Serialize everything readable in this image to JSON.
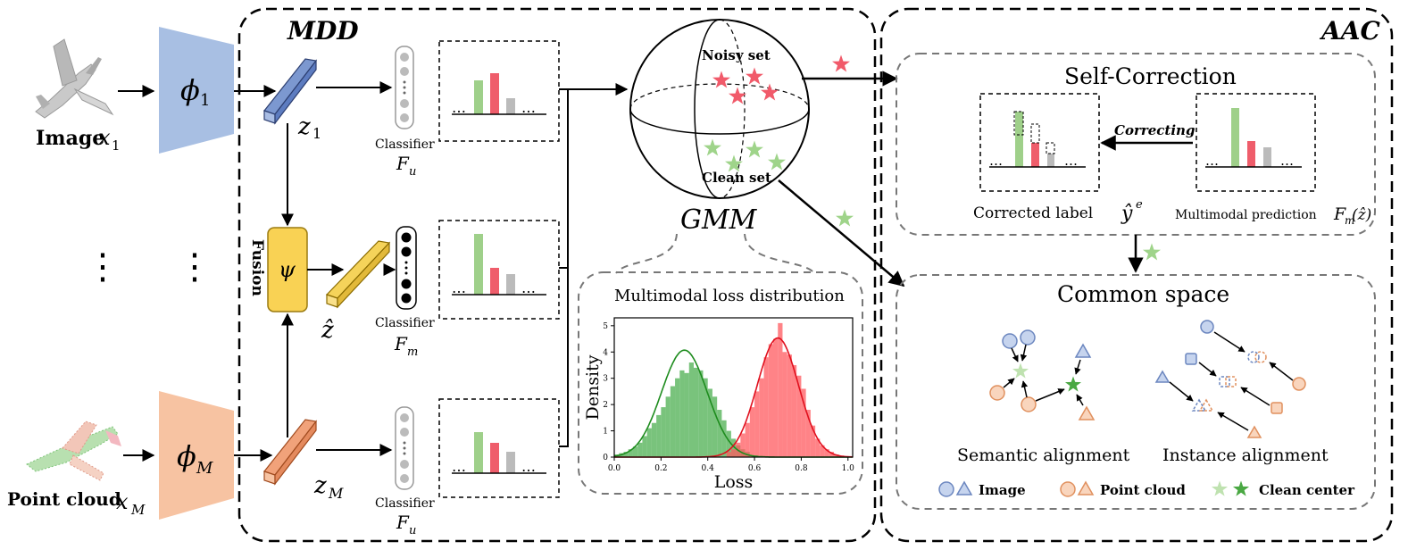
{
  "labels": {
    "image": "Image",
    "image_var": "x",
    "image_sub": "1",
    "point_cloud": "Point cloud",
    "pc_var": "x",
    "pc_sub": "M",
    "phi_1_main": "ϕ",
    "phi_1_sub": "1",
    "phi_M_main": "ϕ",
    "phi_M_sub": "M",
    "z1_main": "z",
    "z1_sub": "1",
    "zM_main": "z",
    "zM_sub": "M",
    "zhat": "ẑ",
    "psi": "ψ",
    "fusion": "Fusion",
    "classifier_1": "Classifier",
    "classifier_2": "Classifier",
    "classifier_3": "Classifier",
    "F_u_1_main": "F",
    "F_u_1_sub": "u",
    "F_m_main": "F",
    "F_m_sub": "m",
    "F_u_2_main": "F",
    "F_u_2_sub": "u",
    "dots": "⋮",
    "bar_ellipsis": "…"
  },
  "mdd": {
    "title": "MDD",
    "noisy_set": "Noisy set",
    "clean_set": "Clean set",
    "gmm": "GMM",
    "loss_title": "Multimodal loss distribution"
  },
  "aac": {
    "title": "AAC",
    "self_correction": "Self-Correction",
    "correcting": "Correcting",
    "corrected_label": "Corrected label",
    "corrected_symbol": "ŷ",
    "corrected_sup": "e",
    "multimodal_prediction": "Multimodal prediction",
    "pred_symbol_main": "F",
    "pred_symbol_sub": "m",
    "pred_arg": "(ẑ)",
    "common_space": "Common space",
    "semantic_alignment": "Semantic alignment",
    "instance_alignment": "Instance alignment",
    "legend_image": "Image",
    "legend_point_cloud": "Point cloud",
    "legend_clean_center": "Clean center"
  },
  "colors": {
    "image_blue": "#a8bfe3",
    "pc_orange": "#f7c3a2",
    "fusion_yellow": "#f9d254",
    "bar_green": "#9fd08a",
    "bar_red": "#ef5d6b",
    "bar_gray": "#bbbbbb",
    "star_red": "#f15a6a",
    "star_green": "#9fd48a",
    "clean_green": "#4aa843",
    "hist_green": "#4caf50",
    "hist_red": "#ff5a5f"
  },
  "chart_data": {
    "type": "histogram",
    "xlabel": "Loss",
    "ylabel": "Density",
    "xlim": [
      0.0,
      1.02
    ],
    "ylim": [
      0,
      5.3
    ],
    "xticks": [
      "0.0",
      "0.2",
      "0.4",
      "0.6",
      "0.8",
      "1.0"
    ],
    "yticks": [
      "0",
      "1",
      "2",
      "3",
      "4",
      "5"
    ],
    "bin_width": 0.02,
    "series": [
      {
        "bin_start": 0.0,
        "values": [
          0.1,
          0.15,
          0.2,
          0.3,
          0.4,
          0.55,
          0.8,
          1.1,
          1.3,
          1.6,
          1.9,
          2.3,
          2.7,
          3.0,
          3.3,
          3.2,
          3.6,
          3.4,
          3.3,
          3.0,
          2.6,
          2.3,
          1.8,
          1.4,
          1.0,
          0.7,
          0.45,
          0.3,
          0.2
        ],
        "curve_mean": 0.3,
        "curve_sd": 0.098
      },
      {
        "bin_start": 0.48,
        "values": [
          0.2,
          0.3,
          0.55,
          0.9,
          1.3,
          1.9,
          2.5,
          3.0,
          3.8,
          4.3,
          4.5,
          5.1,
          4.0,
          3.9,
          3.5,
          3.1,
          2.6,
          1.8,
          1.2,
          0.7,
          0.45,
          0.3,
          0.2,
          0.1
        ],
        "curve_mean": 0.7,
        "curve_sd": 0.088
      }
    ]
  }
}
